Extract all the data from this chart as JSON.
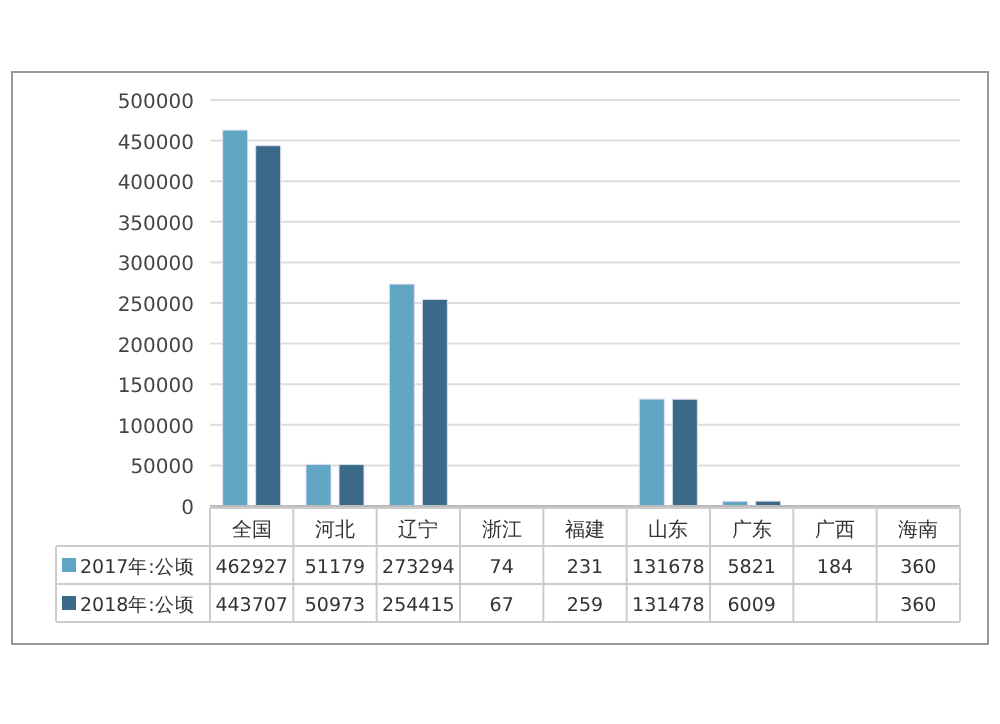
{
  "chart_data": {
    "type": "bar",
    "categories": [
      "全国",
      "河北",
      "辽宁",
      "浙江",
      "福建",
      "山东",
      "广东",
      "广西",
      "海南"
    ],
    "series": [
      {
        "name": "2017年:公顷",
        "color": "#62a6c6",
        "values": [
          462927,
          51179,
          273294,
          74,
          231,
          131678,
          5821,
          184,
          360
        ]
      },
      {
        "name": "2018年:公顷",
        "color": "#3a6a88",
        "values": [
          443707,
          50973,
          254415,
          67,
          259,
          131478,
          6009,
          null,
          360
        ]
      }
    ],
    "ylim": [
      0,
      500000
    ],
    "yticks": [
      0,
      50000,
      100000,
      150000,
      200000,
      250000,
      300000,
      350000,
      400000,
      450000,
      500000
    ],
    "grid": "y",
    "data_labels": true,
    "legend": "bottom"
  }
}
